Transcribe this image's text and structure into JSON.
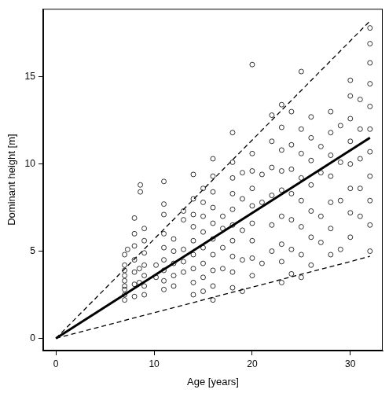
{
  "chart_data": {
    "type": "scatter",
    "x_label": "Age [years]",
    "y_label": "Dominant height [m]",
    "xlim": [
      -1.3,
      33.3
    ],
    "xticks": [
      0,
      10,
      20,
      30
    ],
    "ylim": [
      -0.7,
      18.9
    ],
    "yticks": [
      0,
      5,
      10,
      15
    ],
    "grid": false,
    "series": [
      {
        "type": "scatter",
        "marker": "circle",
        "color": "#000000",
        "x": [
          7,
          7,
          7,
          7,
          7,
          7,
          7,
          7,
          7,
          7.3,
          8,
          8,
          8,
          8,
          8,
          8,
          8,
          8.5,
          8.5,
          8.6,
          8.6,
          9,
          9,
          9,
          9,
          9,
          9,
          9,
          10.2,
          10.2,
          11,
          11,
          11,
          11,
          11,
          11,
          11,
          11,
          11,
          12,
          12,
          12,
          12,
          12,
          13,
          13,
          13,
          13,
          13,
          14,
          14,
          14,
          14,
          14,
          14,
          14,
          14,
          14,
          15,
          15,
          15,
          15,
          15,
          15,
          15,
          15,
          16,
          16,
          16,
          16,
          16,
          16,
          16,
          16,
          16,
          16,
          17,
          17,
          17,
          17,
          18,
          18,
          18,
          18,
          18,
          18,
          18,
          18,
          18,
          18,
          19,
          19,
          19,
          19,
          19,
          20,
          20,
          20,
          20,
          20,
          20,
          20,
          20,
          20,
          21,
          21,
          21,
          22,
          22,
          22,
          22,
          22,
          22,
          23,
          23,
          23,
          23,
          23,
          23,
          23,
          23,
          23,
          24,
          24,
          24,
          24,
          24,
          24,
          24,
          25,
          25,
          25,
          25,
          25,
          25,
          25,
          25,
          26,
          26,
          26,
          26,
          26,
          26,
          26,
          27,
          27,
          27,
          27,
          28,
          28,
          28,
          28,
          28,
          28,
          28,
          29,
          29,
          29,
          29,
          30,
          30,
          30,
          30,
          30,
          30,
          30,
          30,
          31,
          31,
          31,
          31,
          31,
          32,
          32,
          32,
          32,
          32,
          32,
          32,
          32,
          32,
          32,
          32
        ],
        "y": [
          2.2,
          2.5,
          2.8,
          3.0,
          3.3,
          3.6,
          3.9,
          4.2,
          4.8,
          5.1,
          2.4,
          3.1,
          3.8,
          4.5,
          5.3,
          6.0,
          6.9,
          3.2,
          4.0,
          8.4,
          8.8,
          2.5,
          3.0,
          3.6,
          4.2,
          4.9,
          5.6,
          6.3,
          3.5,
          4.2,
          2.8,
          3.3,
          3.9,
          4.5,
          5.2,
          6.0,
          7.1,
          7.7,
          9.0,
          3.0,
          3.6,
          4.3,
          5.0,
          5.7,
          3.8,
          4.4,
          5.1,
          6.8,
          7.3,
          2.5,
          3.2,
          4.0,
          4.8,
          5.6,
          6.4,
          7.1,
          8.0,
          9.4,
          2.7,
          3.5,
          4.3,
          5.2,
          6.1,
          7.0,
          7.8,
          8.6,
          2.2,
          3.0,
          3.9,
          4.8,
          5.7,
          6.6,
          7.5,
          8.4,
          9.3,
          10.3,
          4.0,
          5.2,
          6.3,
          7.0,
          2.9,
          3.8,
          4.7,
          5.6,
          6.5,
          7.4,
          8.3,
          9.2,
          10.1,
          11.8,
          2.7,
          4.5,
          6.2,
          8.0,
          9.5,
          3.6,
          4.6,
          5.6,
          6.6,
          7.6,
          8.6,
          9.6,
          10.6,
          15.7,
          4.3,
          7.8,
          9.4,
          5.0,
          6.5,
          8.2,
          9.8,
          11.3,
          12.8,
          3.2,
          4.4,
          5.4,
          7.0,
          8.5,
          9.6,
          10.8,
          12.1,
          13.4,
          3.7,
          5.1,
          6.8,
          8.3,
          9.7,
          11.1,
          13.0,
          3.5,
          4.8,
          6.4,
          7.9,
          9.2,
          10.6,
          12.0,
          15.3,
          4.2,
          5.8,
          7.3,
          8.8,
          10.2,
          11.5,
          12.7,
          5.5,
          7.0,
          9.5,
          11.0,
          4.8,
          6.3,
          7.8,
          9.3,
          10.5,
          11.8,
          13.0,
          5.1,
          7.9,
          10.1,
          12.2,
          5.8,
          7.2,
          8.6,
          10.0,
          11.3,
          12.6,
          13.9,
          14.8,
          7.0,
          8.6,
          10.3,
          12.0,
          13.7,
          5.0,
          6.5,
          7.9,
          9.3,
          10.7,
          12.0,
          13.3,
          14.6,
          15.8,
          16.9,
          17.8
        ]
      },
      {
        "type": "line",
        "line_style": "solid",
        "color": "#000000",
        "x": [
          0,
          32
        ],
        "y": [
          0,
          11.5
        ]
      },
      {
        "type": "line",
        "line_style": "dashed",
        "color": "#000000",
        "x": [
          0,
          32
        ],
        "y": [
          0,
          18.2
        ]
      },
      {
        "type": "line",
        "line_style": "dashed",
        "color": "#000000",
        "x": [
          0,
          32
        ],
        "y": [
          0,
          4.7
        ]
      }
    ]
  }
}
